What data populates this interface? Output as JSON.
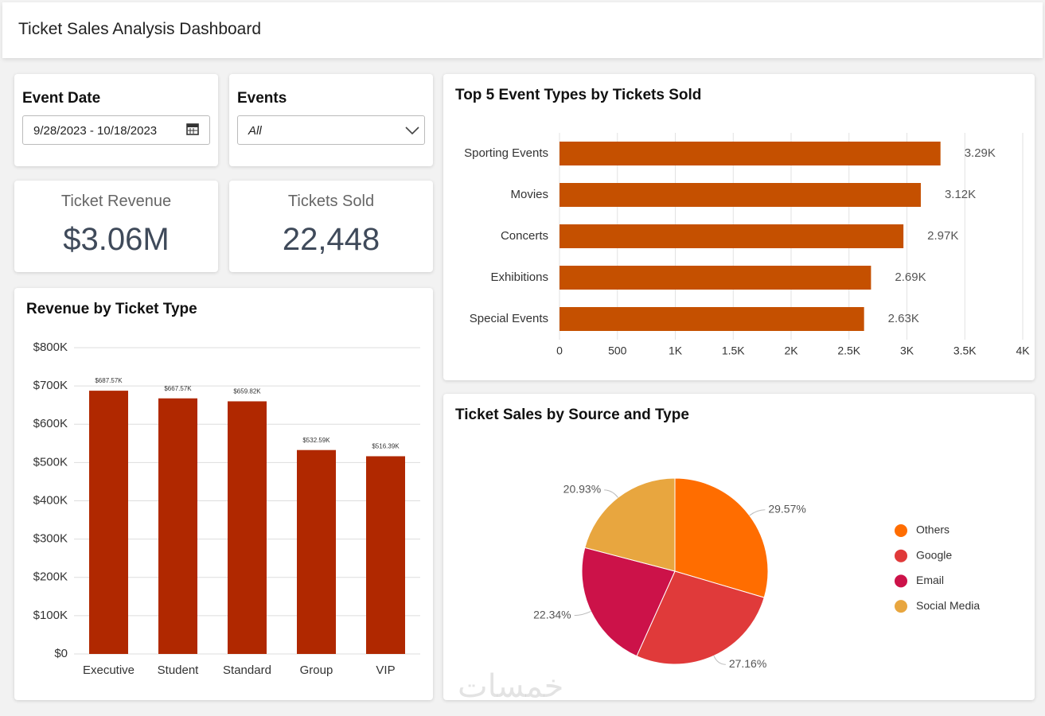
{
  "header": {
    "title": "Ticket Sales Analysis Dashboard"
  },
  "filters": [
    {
      "label": "Event Date",
      "value": "9/28/2023 - 10/18/2023"
    },
    {
      "label": "Events",
      "value": "All"
    }
  ],
  "kpis": [
    {
      "label": "Ticket Revenue",
      "value": "$3.06M"
    },
    {
      "label": "Tickets Sold",
      "value": "22,448"
    }
  ],
  "chart_data": [
    {
      "type": "bar",
      "title": "Revenue by Ticket Type",
      "categories": [
        "Executive",
        "Student",
        "Standard",
        "Group",
        "VIP"
      ],
      "values": [
        687570,
        667570,
        659820,
        532590,
        516390
      ],
      "value_labels": [
        "$687.57K",
        "$667.57K",
        "$659.82K",
        "$532.59K",
        "$516.39K"
      ],
      "color": "#b02800",
      "ylim": [
        0,
        800000
      ],
      "yticks": [
        {
          "value": 0,
          "label": "$0"
        },
        {
          "value": 100000,
          "label": "$100K"
        },
        {
          "value": 200000,
          "label": "$200K"
        },
        {
          "value": 300000,
          "label": "$300K"
        },
        {
          "value": 400000,
          "label": "$400K"
        },
        {
          "value": 500000,
          "label": "$500K"
        },
        {
          "value": 600000,
          "label": "$600K"
        },
        {
          "value": 700000,
          "label": "$700K"
        },
        {
          "value": 800000,
          "label": "$800K"
        }
      ],
      "grid": true
    },
    {
      "type": "hbar",
      "title": "Top 5 Event Types by Tickets Sold",
      "categories": [
        "Sporting Events",
        "Movies",
        "Concerts",
        "Exhibitions",
        "Special Events"
      ],
      "values": [
        3290,
        3120,
        2970,
        2690,
        2630
      ],
      "value_labels": [
        "3.29K",
        "3.12K",
        "2.97K",
        "2.69K",
        "2.63K"
      ],
      "color": "#c55000",
      "xlim": [
        0,
        4000
      ],
      "xticks": [
        0,
        500,
        {
          "value": 1000,
          "label": "1K"
        },
        {
          "value": 1500,
          "label": "1.5K"
        },
        {
          "value": 2000,
          "label": "2K"
        },
        {
          "value": 2500,
          "label": "2.5K"
        },
        {
          "value": 3000,
          "label": "3K"
        },
        {
          "value": 3500,
          "label": "3.5K"
        },
        {
          "value": 4000,
          "label": "4K"
        }
      ],
      "grid": true
    },
    {
      "type": "pie",
      "title": "Ticket Sales by Source and Type",
      "categories": [
        "Others",
        "Google",
        "Email",
        "Social Media"
      ],
      "values": [
        29.57,
        27.16,
        22.34,
        20.93
      ],
      "value_labels": [
        "29.57%",
        "27.16%",
        "22.34%",
        "20.93%"
      ],
      "colors": [
        "#ff6d00",
        "#e03a3a",
        "#cc1249",
        "#e8a63f"
      ],
      "legend": "right"
    }
  ],
  "watermark": "خمسات"
}
